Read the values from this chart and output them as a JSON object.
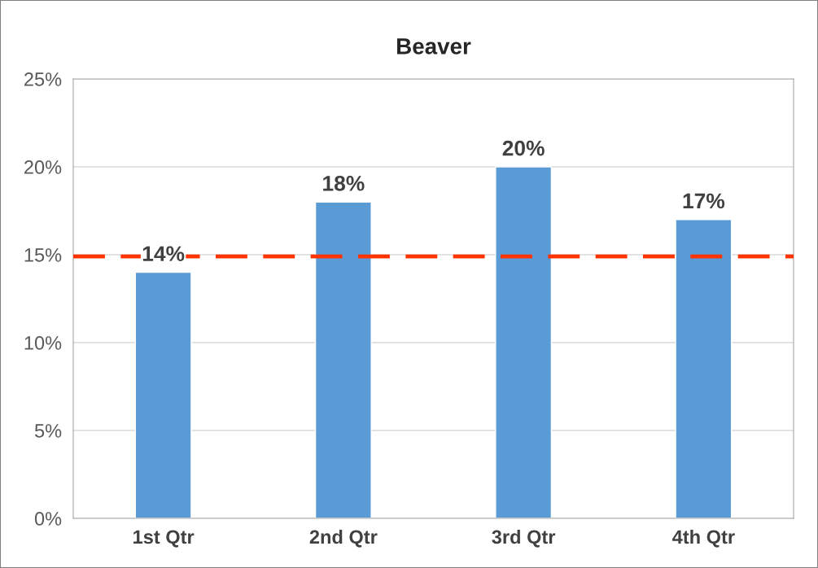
{
  "chart_data": {
    "type": "bar",
    "title": "Beaver",
    "categories": [
      "1st Qtr",
      "2nd Qtr",
      "3rd Qtr",
      "4th Qtr"
    ],
    "values": [
      14,
      18,
      20,
      17
    ],
    "color": "#5b9bd5",
    "value_labels": [
      "14%",
      "18%",
      "20%",
      "17%"
    ],
    "ylim": [
      0,
      25
    ],
    "yticks": [
      {
        "value": 0,
        "label": "0%"
      },
      {
        "value": 5,
        "label": "5%"
      },
      {
        "value": 10,
        "label": "10%"
      },
      {
        "value": 15,
        "label": "15%"
      },
      {
        "value": 20,
        "label": "20%"
      },
      {
        "value": 25,
        "label": "25%"
      }
    ],
    "grid": "y",
    "ref_lines": [
      {
        "axis": "y",
        "value": 14.9,
        "color": "#ff3300",
        "line_style": "dashed"
      }
    ]
  }
}
